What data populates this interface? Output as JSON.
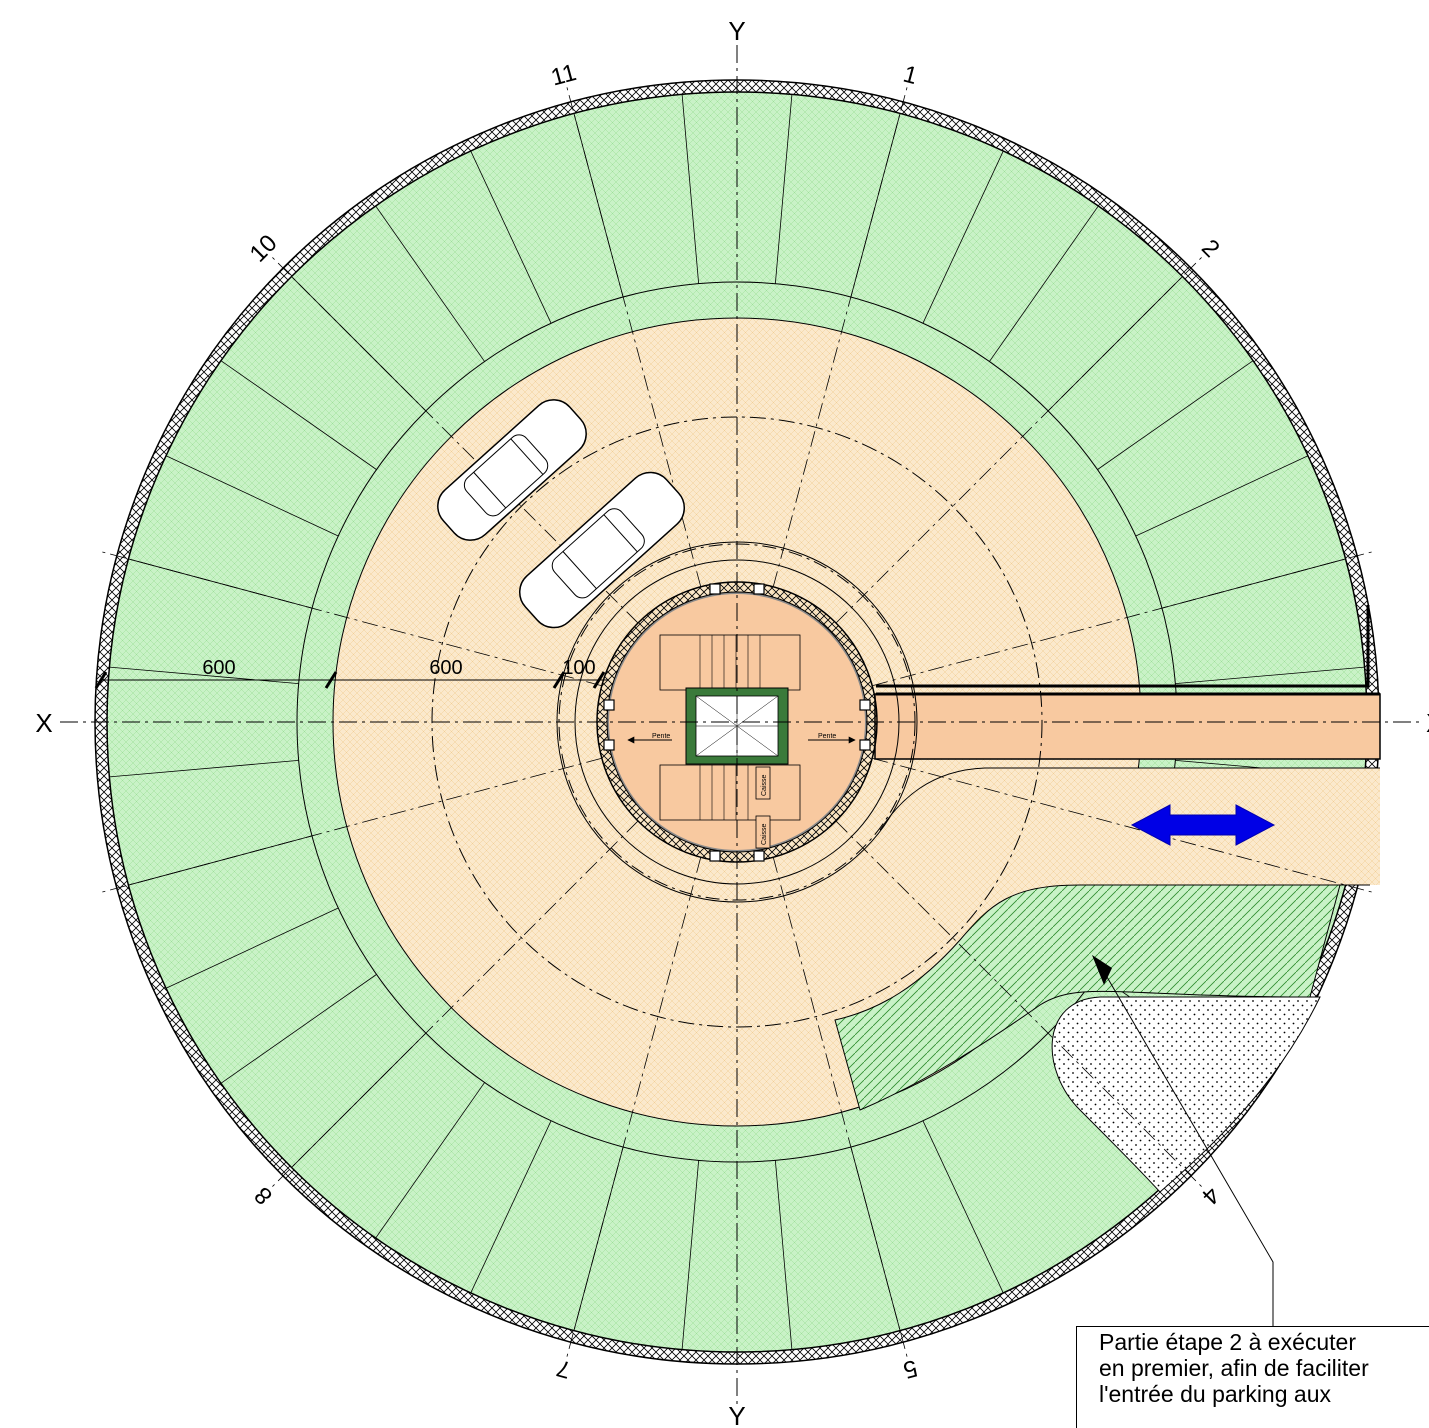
{
  "axes": {
    "y_top": "Y",
    "y_bottom": "Y",
    "x_left": "X",
    "x_right": "X"
  },
  "grid_numbers": [
    "1",
    "2",
    "4",
    "5",
    "7",
    "8",
    "10",
    "11"
  ],
  "dimensions": [
    "600",
    "600",
    "100"
  ],
  "stair_labels": {
    "slope_left": "Pente",
    "slope_right": "Pente",
    "box_upper": "Caisse",
    "box_lower": "Caisse"
  },
  "note": {
    "line1": "Partie étape 2 à exécuter",
    "line2": "en premier, afin de faciliter",
    "line3": "l'entrée du parking aux"
  },
  "colors": {
    "parking_green": "#c9f2c7",
    "ring_beige": "#fbe9cc",
    "ramp_orange": "#f8c9a0",
    "arrow_blue": "#0000e6"
  }
}
